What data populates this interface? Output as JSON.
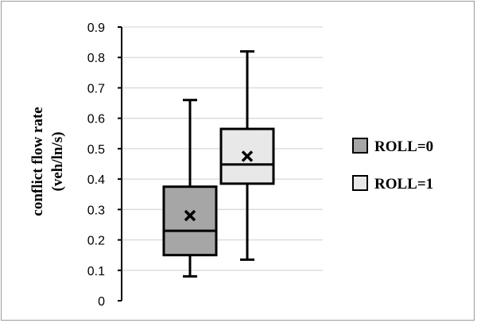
{
  "chart_data": {
    "type": "box",
    "ylabel_line1": "conflict flow rate",
    "ylabel_line2": "(veh/ln/s)",
    "ylim": [
      0,
      0.9
    ],
    "yticks": [
      "0",
      "0.1",
      "0.2",
      "0.3",
      "0.4",
      "0.5",
      "0.6",
      "0.7",
      "0.8",
      "0.9"
    ],
    "grid": true,
    "legend_position": "right",
    "series": [
      {
        "name": "ROLL=0",
        "color": "#a6a6a6",
        "min": 0.08,
        "q1": 0.15,
        "median": 0.23,
        "q3": 0.375,
        "max": 0.66,
        "mean": 0.28
      },
      {
        "name": "ROLL=1",
        "color": "#e8e8e8",
        "min": 0.135,
        "q1": 0.385,
        "median": 0.448,
        "q3": 0.565,
        "max": 0.82,
        "mean": 0.475
      }
    ]
  }
}
